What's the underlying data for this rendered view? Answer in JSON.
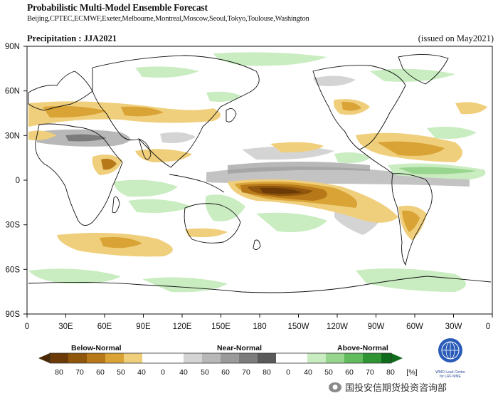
{
  "header": {
    "title": "Probabilistic Multi-Model Ensemble Forecast",
    "centers": "Beijing,CPTEC,ECMWF,Exeter,Melbourne,Montreal,Moscow,Seoul,Tokyo,Toulouse,Washington",
    "variable": "Precipitation : JJA2021",
    "issued": "(issued on May2021)"
  },
  "map": {
    "lat_labels": [
      "90N",
      "60N",
      "30N",
      "0",
      "30S",
      "60S",
      "90S"
    ],
    "lon_labels": [
      "0",
      "30E",
      "60E",
      "90E",
      "120E",
      "150E",
      "180",
      "150W",
      "120W",
      "90W",
      "60W",
      "30W",
      "0"
    ]
  },
  "legend": {
    "categories": [
      "Below-Normal",
      "Near-Normal",
      "Above-Normal"
    ],
    "ticks": [
      "80",
      "70",
      "60",
      "50",
      "40",
      "0",
      "40",
      "50",
      "60",
      "70",
      "80",
      "0",
      "40",
      "50",
      "60",
      "70",
      "80"
    ],
    "unit": "[%]",
    "colors": {
      "below": [
        "#6b3a06",
        "#8f560c",
        "#b7781a",
        "#d9a336",
        "#f0cf7c"
      ],
      "near": [
        "#d4d4d4",
        "#b8b8b8",
        "#9a9a9a",
        "#7c7c7c",
        "#5a5a5a"
      ],
      "above": [
        "#c9ecc0",
        "#98d58e",
        "#62bb5c",
        "#2f9432",
        "#106b1c"
      ]
    }
  },
  "logo": {
    "text": "WMO Lead Centre for LRF MME"
  },
  "watermark": {
    "text": "国投安信期货投资咨询部"
  }
}
